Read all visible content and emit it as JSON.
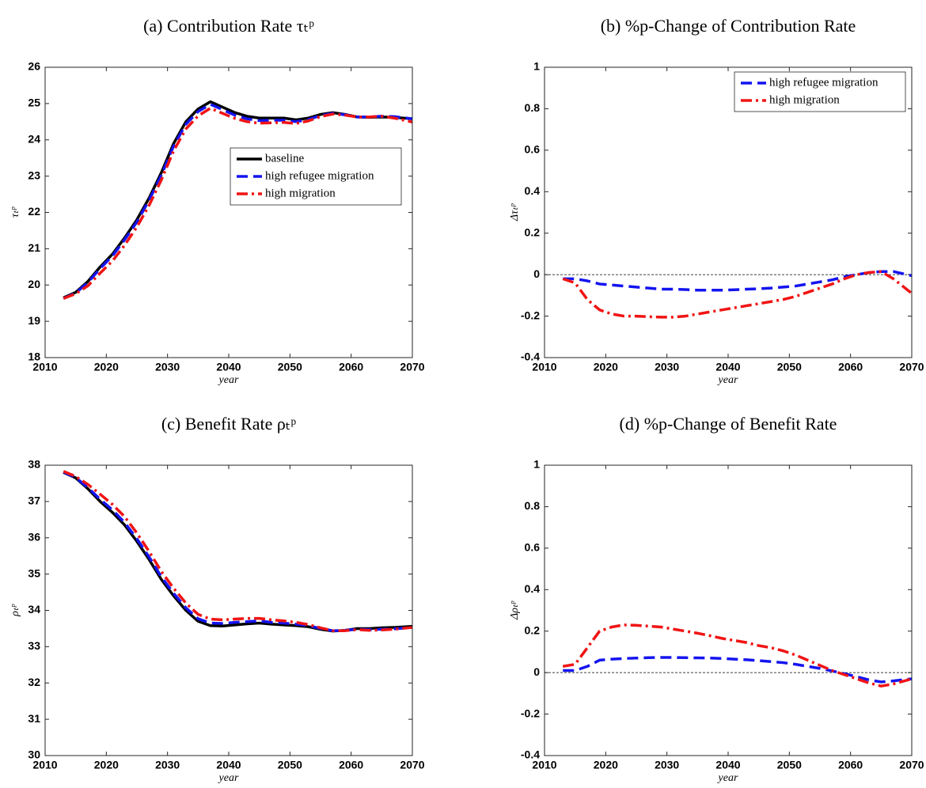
{
  "chart_data": [
    {
      "type": "line",
      "title": "(a) Contribution Rate τₜᵖ",
      "xlabel": "year",
      "ylabel": "τₜᵖ",
      "x": [
        2013,
        2015,
        2017,
        2019,
        2021,
        2023,
        2025,
        2027,
        2029,
        2031,
        2033,
        2035,
        2037,
        2039,
        2041,
        2043,
        2045,
        2047,
        2049,
        2051,
        2053,
        2055,
        2057,
        2059,
        2061,
        2063,
        2065,
        2067,
        2070
      ],
      "series": [
        {
          "name": "baseline",
          "color": "#000000",
          "style": "solid",
          "values": [
            19.65,
            19.8,
            20.1,
            20.5,
            20.85,
            21.3,
            21.8,
            22.4,
            23.1,
            23.9,
            24.5,
            24.85,
            25.05,
            24.9,
            24.75,
            24.65,
            24.6,
            24.6,
            24.6,
            24.55,
            24.6,
            24.7,
            24.75,
            24.7,
            24.63,
            24.62,
            24.63,
            24.62,
            24.58
          ]
        },
        {
          "name": "high refugee migration",
          "color": "#1414f0",
          "style": "dashed",
          "values": [
            19.63,
            19.78,
            20.07,
            20.46,
            20.8,
            21.25,
            21.74,
            22.34,
            23.03,
            23.83,
            24.43,
            24.78,
            24.98,
            24.83,
            24.68,
            24.58,
            24.53,
            24.54,
            24.54,
            24.5,
            24.56,
            24.67,
            24.73,
            24.69,
            24.63,
            24.63,
            24.65,
            24.64,
            24.58
          ]
        },
        {
          "name": "high migration",
          "color": "#f01414",
          "style": "dashdot",
          "values": [
            19.63,
            19.76,
            19.98,
            20.33,
            20.66,
            21.1,
            21.6,
            22.2,
            22.9,
            23.7,
            24.3,
            24.66,
            24.87,
            24.73,
            24.59,
            24.5,
            24.46,
            24.47,
            24.48,
            24.45,
            24.52,
            24.64,
            24.71,
            24.68,
            24.63,
            24.63,
            24.65,
            24.6,
            24.49
          ]
        }
      ],
      "xlim": [
        2010,
        2070
      ],
      "xticks": [
        2010,
        2020,
        2030,
        2040,
        2050,
        2060,
        2070
      ],
      "ylim": [
        18,
        26
      ],
      "yticks": [
        18,
        19,
        20,
        21,
        22,
        23,
        24,
        25,
        26
      ],
      "legend": "east",
      "zero_line": false
    },
    {
      "type": "line",
      "title": "(b) %p-Change of Contribution Rate",
      "xlabel": "year",
      "ylabel": "Δτₜᵖ",
      "x": [
        2013,
        2015,
        2017,
        2019,
        2021,
        2023,
        2025,
        2027,
        2029,
        2031,
        2033,
        2035,
        2037,
        2039,
        2041,
        2043,
        2045,
        2047,
        2049,
        2051,
        2053,
        2055,
        2057,
        2059,
        2061,
        2063,
        2065,
        2067,
        2070
      ],
      "series": [
        {
          "name": "high refugee migration",
          "color": "#1414f0",
          "style": "dashed",
          "values": [
            -0.02,
            -0.02,
            -0.03,
            -0.045,
            -0.05,
            -0.055,
            -0.06,
            -0.065,
            -0.07,
            -0.07,
            -0.072,
            -0.075,
            -0.075,
            -0.075,
            -0.073,
            -0.07,
            -0.068,
            -0.065,
            -0.06,
            -0.055,
            -0.045,
            -0.035,
            -0.025,
            -0.01,
            0,
            0.01,
            0.015,
            0.015,
            -0.005
          ]
        },
        {
          "name": "high migration",
          "color": "#f01414",
          "style": "dashdot",
          "values": [
            -0.02,
            -0.04,
            -0.12,
            -0.17,
            -0.19,
            -0.2,
            -0.2,
            -0.203,
            -0.205,
            -0.205,
            -0.2,
            -0.19,
            -0.18,
            -0.17,
            -0.16,
            -0.15,
            -0.14,
            -0.13,
            -0.12,
            -0.105,
            -0.085,
            -0.065,
            -0.045,
            -0.02,
            0,
            0.01,
            0.015,
            -0.02,
            -0.09
          ]
        }
      ],
      "xlim": [
        2010,
        2070
      ],
      "xticks": [
        2010,
        2020,
        2030,
        2040,
        2050,
        2060,
        2070
      ],
      "ylim": [
        -0.4,
        1
      ],
      "yticks": [
        -0.4,
        -0.2,
        0,
        0.2,
        0.4,
        0.6,
        0.8,
        1
      ],
      "legend": "northeast",
      "zero_line": true
    },
    {
      "type": "line",
      "title": "(c) Benefit Rate ρₜᵖ",
      "xlabel": "year",
      "ylabel": "ρₜᵖ",
      "x": [
        2013,
        2015,
        2017,
        2019,
        2021,
        2023,
        2025,
        2027,
        2029,
        2031,
        2033,
        2035,
        2037,
        2039,
        2041,
        2043,
        2045,
        2047,
        2049,
        2051,
        2053,
        2055,
        2057,
        2059,
        2061,
        2063,
        2065,
        2067,
        2070
      ],
      "series": [
        {
          "name": "baseline",
          "color": "#000000",
          "style": "solid",
          "values": [
            37.8,
            37.65,
            37.35,
            37.0,
            36.7,
            36.35,
            35.9,
            35.4,
            34.85,
            34.4,
            34.0,
            33.7,
            33.58,
            33.57,
            33.6,
            33.63,
            33.65,
            33.62,
            33.6,
            33.58,
            33.55,
            33.48,
            33.43,
            33.45,
            33.5,
            33.5,
            33.52,
            33.53,
            33.56
          ]
        },
        {
          "name": "high refugee migration",
          "color": "#1414f0",
          "style": "dashed",
          "values": [
            37.81,
            37.66,
            37.38,
            37.06,
            36.77,
            36.42,
            35.97,
            35.47,
            34.92,
            34.47,
            34.07,
            33.77,
            33.65,
            33.64,
            33.67,
            33.69,
            33.71,
            33.67,
            33.65,
            33.62,
            33.58,
            33.5,
            33.44,
            33.45,
            33.48,
            33.47,
            33.48,
            33.49,
            33.53
          ]
        },
        {
          "name": "high migration",
          "color": "#f01414",
          "style": "dashdot",
          "values": [
            37.83,
            37.69,
            37.47,
            37.2,
            36.92,
            36.58,
            36.13,
            35.62,
            35.07,
            34.61,
            34.2,
            33.89,
            33.76,
            33.74,
            33.76,
            33.78,
            33.78,
            33.74,
            33.71,
            33.67,
            33.61,
            33.52,
            33.44,
            33.44,
            33.47,
            33.45,
            33.46,
            33.48,
            33.53
          ]
        }
      ],
      "xlim": [
        2010,
        2070
      ],
      "xticks": [
        2010,
        2020,
        2030,
        2040,
        2050,
        2060,
        2070
      ],
      "ylim": [
        30,
        38
      ],
      "yticks": [
        30,
        31,
        32,
        33,
        34,
        35,
        36,
        37,
        38
      ],
      "zero_line": false
    },
    {
      "type": "line",
      "title": "(d) %p-Change of Benefit Rate",
      "xlabel": "year",
      "ylabel": "Δρₜᵖ",
      "x": [
        2013,
        2015,
        2017,
        2019,
        2021,
        2023,
        2025,
        2027,
        2029,
        2031,
        2033,
        2035,
        2037,
        2039,
        2041,
        2043,
        2045,
        2047,
        2049,
        2051,
        2053,
        2055,
        2057,
        2059,
        2061,
        2063,
        2065,
        2067,
        2070
      ],
      "series": [
        {
          "name": "high refugee migration",
          "color": "#1414f0",
          "style": "dashed",
          "values": [
            0.01,
            0.01,
            0.03,
            0.06,
            0.065,
            0.068,
            0.07,
            0.072,
            0.073,
            0.073,
            0.072,
            0.071,
            0.07,
            0.068,
            0.065,
            0.062,
            0.058,
            0.053,
            0.048,
            0.04,
            0.03,
            0.02,
            0.008,
            -0.005,
            -0.02,
            -0.035,
            -0.045,
            -0.04,
            -0.03
          ]
        },
        {
          "name": "high migration",
          "color": "#f01414",
          "style": "dashdot",
          "values": [
            0.03,
            0.04,
            0.12,
            0.2,
            0.22,
            0.23,
            0.228,
            0.224,
            0.22,
            0.21,
            0.2,
            0.19,
            0.178,
            0.165,
            0.155,
            0.145,
            0.13,
            0.12,
            0.105,
            0.085,
            0.06,
            0.035,
            0.01,
            -0.01,
            -0.03,
            -0.05,
            -0.065,
            -0.055,
            -0.03
          ]
        }
      ],
      "xlim": [
        2010,
        2070
      ],
      "xticks": [
        2010,
        2020,
        2030,
        2040,
        2050,
        2060,
        2070
      ],
      "ylim": [
        -0.4,
        1
      ],
      "yticks": [
        -0.4,
        -0.2,
        0,
        0.2,
        0.4,
        0.6,
        0.8,
        1
      ],
      "zero_line": true
    }
  ]
}
